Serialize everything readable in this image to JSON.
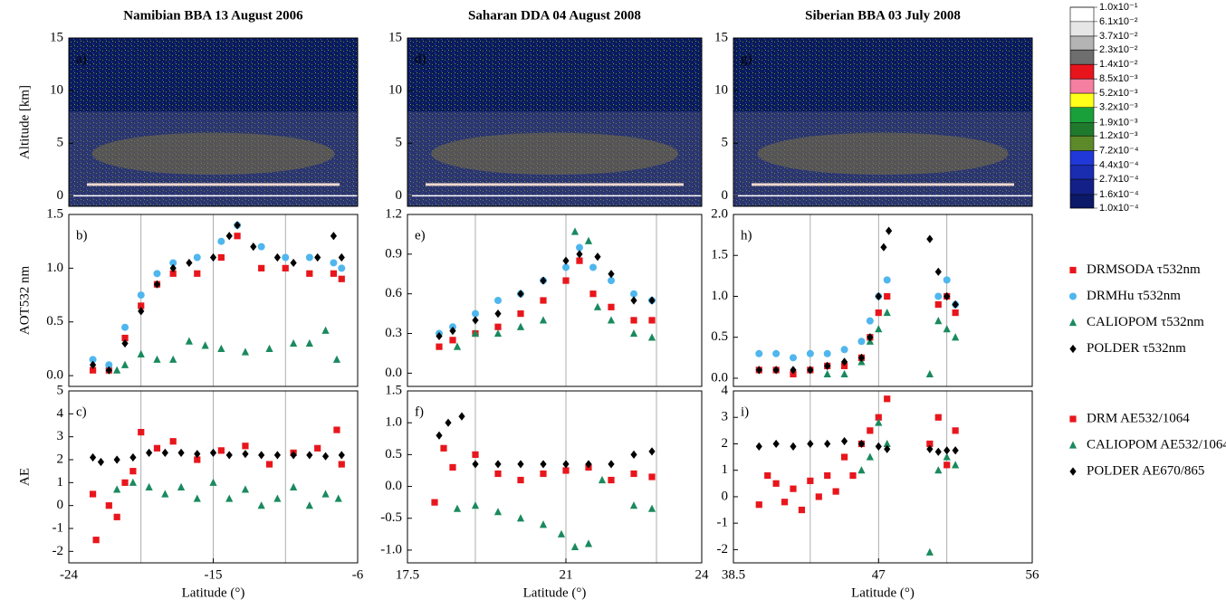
{
  "chart_data": [
    {
      "type": "lidar",
      "title": "Namibian BBA 13 August 2006",
      "label": "a)",
      "ylabel": "Altitude [km]",
      "xlim": [
        -24,
        -6
      ],
      "ylim": [
        -1,
        15
      ],
      "yticks": [
        0,
        5,
        10,
        15
      ]
    },
    {
      "type": "lidar",
      "title": "Saharan DDA 04 August 2008",
      "label": "d)",
      "xlim": [
        17.5,
        24
      ],
      "ylim": [
        -1,
        15
      ],
      "yticks": [
        0,
        5,
        10,
        15
      ]
    },
    {
      "type": "lidar",
      "title": "Siberian BBA 03 July 2008",
      "label": "g)",
      "xlim": [
        38.5,
        56
      ],
      "ylim": [
        -1,
        15
      ],
      "yticks": [
        0,
        5,
        10,
        15
      ]
    },
    {
      "type": "scatter",
      "label": "b)",
      "ylabel": "AOT532 nm",
      "xlim": [
        -24,
        -6
      ],
      "ylim": [
        -0.1,
        1.5
      ],
      "yticks": [
        {
          "value": 0,
          "label": "0.0"
        },
        0.5,
        {
          "value": 1,
          "label": "1.0"
        },
        1.5
      ],
      "vlines": [
        -19.5,
        -15,
        -10.5
      ],
      "series": [
        {
          "color": "#e8161c",
          "marker": "square",
          "x": [
            -22.5,
            -21.5,
            -20.5,
            -19.5,
            -18.5,
            -17.5,
            -16,
            -14.5,
            -13.5,
            -12,
            -10.5,
            -9,
            -7.5,
            -7
          ],
          "values": [
            0.05,
            0.05,
            0.35,
            0.65,
            0.85,
            0.95,
            0.95,
            1.1,
            1.3,
            1.0,
            1.0,
            0.95,
            0.95,
            0.9
          ]
        },
        {
          "color": "#4fb6ee",
          "marker": "circle",
          "x": [
            -22.5,
            -21.5,
            -20.5,
            -19.5,
            -18.5,
            -17.5,
            -16,
            -14.5,
            -13.5,
            -12,
            -10.5,
            -9,
            -7.5,
            -7
          ],
          "values": [
            0.15,
            0.1,
            0.45,
            0.75,
            0.95,
            1.05,
            1.1,
            1.25,
            1.4,
            1.2,
            1.1,
            1.1,
            1.05,
            1.0
          ]
        },
        {
          "color": "#1a8a5e",
          "marker": "triangle",
          "x": [
            -21,
            -20.5,
            -19.5,
            -18.5,
            -17.5,
            -16.5,
            -15.5,
            -14.5,
            -13,
            -11.5,
            -10,
            -9,
            -8,
            -7.3
          ],
          "values": [
            0.05,
            0.1,
            0.2,
            0.15,
            0.15,
            0.32,
            0.28,
            0.25,
            0.22,
            0.25,
            0.3,
            0.3,
            0.42,
            0.15
          ]
        },
        {
          "color": "#000000",
          "marker": "diamond",
          "x": [
            -22.5,
            -21.5,
            -20.5,
            -19.5,
            -18.5,
            -17.5,
            -16.5,
            -15,
            -14,
            -13.5,
            -12.5,
            -11,
            -10,
            -8.5,
            -7.5,
            -7
          ],
          "values": [
            0.1,
            0.05,
            0.3,
            0.6,
            0.85,
            1.0,
            1.05,
            1.1,
            1.3,
            1.4,
            1.2,
            1.1,
            1.05,
            1.1,
            1.3,
            1.1
          ]
        }
      ]
    },
    {
      "type": "scatter",
      "label": "e)",
      "xlim": [
        17.5,
        24
      ],
      "ylim": [
        -0.1,
        1.2
      ],
      "yticks": [
        {
          "value": 0,
          "label": "0.0"
        },
        0.3,
        0.6,
        0.9,
        1.2
      ],
      "vlines": [
        19,
        21,
        23
      ],
      "series": [
        {
          "color": "#e8161c",
          "marker": "square",
          "x": [
            18.2,
            18.5,
            19,
            19.5,
            20,
            20.5,
            21,
            21.3,
            21.6,
            22,
            22.5,
            22.9
          ],
          "values": [
            0.2,
            0.25,
            0.3,
            0.35,
            0.45,
            0.55,
            0.7,
            0.85,
            0.6,
            0.5,
            0.4,
            0.4
          ]
        },
        {
          "color": "#4fb6ee",
          "marker": "circle",
          "x": [
            18.2,
            18.5,
            19,
            19.5,
            20,
            20.5,
            21,
            21.3,
            21.6,
            22,
            22.5,
            22.9
          ],
          "values": [
            0.3,
            0.35,
            0.45,
            0.55,
            0.6,
            0.7,
            0.8,
            0.95,
            0.8,
            0.7,
            0.6,
            0.55
          ]
        },
        {
          "color": "#1a8a5e",
          "marker": "triangle",
          "x": [
            18.6,
            19,
            19.5,
            20,
            20.5,
            21.2,
            21.5,
            21.7,
            22,
            22.5,
            22.9
          ],
          "values": [
            0.2,
            0.3,
            0.3,
            0.35,
            0.4,
            1.07,
            1.0,
            0.5,
            0.4,
            0.3,
            0.27
          ]
        },
        {
          "color": "#000000",
          "marker": "diamond",
          "x": [
            18.2,
            18.5,
            19,
            19.5,
            20,
            20.5,
            21,
            21.3,
            21.7,
            22,
            22.5,
            22.9
          ],
          "values": [
            0.28,
            0.32,
            0.4,
            0.45,
            0.6,
            0.7,
            0.85,
            0.9,
            0.88,
            0.75,
            0.55,
            0.55
          ]
        }
      ]
    },
    {
      "type": "scatter",
      "label": "h)",
      "xlim": [
        38.5,
        56
      ],
      "ylim": [
        -0.1,
        2.0
      ],
      "yticks": [
        {
          "value": 0,
          "label": "0.0"
        },
        0.5,
        {
          "value": 1,
          "label": "1.0"
        },
        1.5,
        {
          "value": 2,
          "label": "2.0"
        }
      ],
      "vlines": [
        43,
        47,
        51
      ],
      "legend": "center right",
      "series": [
        {
          "name": "DRMSODA τ532nm",
          "color": "#e8161c",
          "marker": "square",
          "x": [
            40,
            41,
            42,
            43,
            44,
            45,
            46,
            46.5,
            47,
            47.5,
            50.5,
            51,
            51.5
          ],
          "values": [
            0.1,
            0.1,
            0.05,
            0.1,
            0.15,
            0.15,
            0.25,
            0.5,
            0.8,
            1.0,
            0.9,
            1.0,
            0.8
          ]
        },
        {
          "name": "DRMHu τ532nm",
          "color": "#4fb6ee",
          "marker": "circle",
          "x": [
            40,
            41,
            42,
            43,
            44,
            45,
            46,
            46.5,
            47,
            47.5,
            50.5,
            51,
            51.5
          ],
          "values": [
            0.3,
            0.3,
            0.25,
            0.3,
            0.3,
            0.35,
            0.45,
            0.7,
            1.0,
            1.2,
            1.0,
            1.2,
            0.9
          ]
        },
        {
          "name": "CALIOPOM τ532nm",
          "color": "#1a8a5e",
          "marker": "triangle",
          "x": [
            44,
            45,
            46,
            46.5,
            47,
            47.5,
            50,
            50.5,
            51,
            51.5
          ],
          "values": [
            0.05,
            0.05,
            0.2,
            0.45,
            0.6,
            0.8,
            0.05,
            0.7,
            0.6,
            0.5
          ]
        },
        {
          "name": "POLDER τ532nm",
          "color": "#000000",
          "marker": "diamond",
          "x": [
            40,
            41,
            42,
            43,
            44,
            45,
            46,
            46.5,
            47,
            47.3,
            47.6,
            50,
            50.5,
            51,
            51.5
          ],
          "values": [
            0.1,
            0.1,
            0.1,
            0.1,
            0.15,
            0.2,
            0.25,
            0.5,
            1.0,
            1.6,
            1.8,
            1.7,
            1.3,
            1.0,
            0.9
          ]
        }
      ]
    },
    {
      "type": "scatter",
      "label": "c)",
      "ylabel": "AE",
      "xlabel": "Latitude (°)",
      "xlim": [
        -24,
        -6
      ],
      "xticks": [
        -24,
        -15,
        -6
      ],
      "ylim": [
        -2.5,
        5
      ],
      "yticks": [
        -2,
        -1,
        0,
        1,
        2,
        3,
        4,
        5
      ],
      "vlines": [
        -19.5,
        -15,
        -10.5
      ],
      "series": [
        {
          "color": "#e8161c",
          "marker": "square",
          "x": [
            -22.5,
            -22.3,
            -21.5,
            -21,
            -20.5,
            -20,
            -19.5,
            -18.5,
            -17.5,
            -16,
            -14.5,
            -13,
            -11.5,
            -10,
            -8.5,
            -7.3,
            -7
          ],
          "values": [
            0.5,
            -1.5,
            0,
            -0.5,
            1,
            1.5,
            3.2,
            2.5,
            2.8,
            2.0,
            2.4,
            2.6,
            1.8,
            2.3,
            2.5,
            3.3,
            1.8
          ]
        },
        {
          "color": "#1a8a5e",
          "marker": "triangle",
          "x": [
            -21,
            -20,
            -19,
            -18,
            -17,
            -16,
            -15,
            -14,
            -13,
            -12,
            -11,
            -10,
            -9,
            -8,
            -7.2
          ],
          "values": [
            0.7,
            1.0,
            0.8,
            0.5,
            0.8,
            0.3,
            1.0,
            0.3,
            0.7,
            0,
            0.3,
            0.8,
            0,
            0.5,
            0.3
          ]
        },
        {
          "color": "#000000",
          "marker": "diamond",
          "x": [
            -22.5,
            -22,
            -21,
            -20,
            -19,
            -18,
            -17,
            -16,
            -15,
            -14,
            -13,
            -12,
            -11,
            -10,
            -9,
            -8,
            -7
          ],
          "values": [
            2.1,
            1.9,
            2.0,
            2.1,
            2.3,
            2.3,
            2.3,
            2.25,
            2.3,
            2.2,
            2.25,
            2.2,
            2.2,
            2.2,
            2.2,
            2.15,
            2.2
          ]
        }
      ]
    },
    {
      "type": "scatter",
      "label": "f)",
      "xlabel": "Latitude (°)",
      "xlim": [
        17.5,
        24
      ],
      "xticks": [
        17.5,
        21,
        24
      ],
      "ylim": [
        -1.2,
        1.5
      ],
      "yticks": [
        {
          "value": -1,
          "label": "-1.0"
        },
        -0.5,
        {
          "value": 0,
          "label": "0.0"
        },
        0.5,
        {
          "value": 1,
          "label": "1.0"
        },
        1.5
      ],
      "vlines": [
        19,
        21,
        23
      ],
      "series": [
        {
          "color": "#e8161c",
          "marker": "square",
          "x": [
            18.1,
            18.3,
            18.5,
            19,
            19.5,
            20,
            20.5,
            21,
            21.5,
            22,
            22.5,
            22.9
          ],
          "values": [
            -0.25,
            0.6,
            0.3,
            0.5,
            0.2,
            0.1,
            0.2,
            0.25,
            0.3,
            0.1,
            0.2,
            0.15
          ]
        },
        {
          "color": "#1a8a5e",
          "marker": "triangle",
          "x": [
            18.6,
            19,
            19.5,
            20,
            20.5,
            20.9,
            21.2,
            21.5,
            21.8,
            22.5,
            22.9
          ],
          "values": [
            -0.35,
            -0.3,
            -0.4,
            -0.5,
            -0.6,
            -0.75,
            -0.95,
            -0.9,
            0.1,
            -0.3,
            -0.35
          ]
        },
        {
          "color": "#000000",
          "marker": "diamond",
          "x": [
            18.2,
            18.4,
            18.7,
            19,
            19.5,
            20,
            20.5,
            21,
            21.5,
            22,
            22.5,
            22.9
          ],
          "values": [
            0.8,
            1.0,
            1.1,
            0.35,
            0.35,
            0.35,
            0.35,
            0.35,
            0.35,
            0.35,
            0.5,
            0.55
          ]
        }
      ]
    },
    {
      "type": "scatter",
      "label": "i)",
      "xlabel": "Latitude (°)",
      "xlim": [
        38.5,
        56
      ],
      "xticks": [
        38.5,
        47,
        56
      ],
      "ylim": [
        -2.5,
        4
      ],
      "yticks": [
        -2,
        -1,
        0,
        1,
        2,
        3,
        4
      ],
      "vlines": [
        43,
        47,
        51
      ],
      "legend": "upper right",
      "series": [
        {
          "name": "DRM AE532/1064",
          "color": "#e8161c",
          "marker": "square",
          "x": [
            40,
            40.5,
            41,
            41.5,
            42,
            42.5,
            43,
            43.5,
            44,
            44.5,
            45,
            45.5,
            46,
            46.5,
            47,
            47.5,
            50,
            50.5,
            51,
            51.5
          ],
          "values": [
            -0.3,
            0.8,
            0.5,
            -0.2,
            0.3,
            -0.5,
            0.6,
            0,
            0.8,
            0.2,
            1.5,
            0.8,
            2.0,
            2.5,
            3.0,
            3.7,
            2.0,
            3.0,
            1.2,
            2.5
          ]
        },
        {
          "name": "CALIOPOM AE532/1064",
          "color": "#1a8a5e",
          "marker": "triangle",
          "x": [
            46,
            46.5,
            47,
            47.5,
            50,
            50.5,
            51,
            51.5
          ],
          "values": [
            1.0,
            1.5,
            2.8,
            2.0,
            -2.1,
            1.0,
            1.5,
            1.2
          ]
        },
        {
          "name": "POLDER AE670/865",
          "color": "#000000",
          "marker": "diamond",
          "x": [
            40,
            41,
            42,
            43,
            44,
            45,
            46,
            47,
            47.5,
            50,
            50.5,
            51,
            51.5
          ],
          "values": [
            1.9,
            2.0,
            1.9,
            2.0,
            2.0,
            2.1,
            2.0,
            1.9,
            1.8,
            1.8,
            1.7,
            1.75,
            1.75
          ]
        }
      ]
    },
    {
      "type": "colorbar",
      "log": true,
      "ylim": [
        0.0001,
        0.1
      ],
      "yticks": [
        {
          "value": 0.1,
          "label": "1.0x10⁻¹"
        },
        {
          "value": 0.061,
          "label": "6.1x10⁻²"
        },
        {
          "value": 0.037,
          "label": "3.7x10⁻²"
        },
        {
          "value": 0.023,
          "label": "2.3x10⁻²"
        },
        {
          "value": 0.014,
          "label": "1.4x10⁻²"
        },
        {
          "value": 0.0085,
          "label": "8.5x10⁻³"
        },
        {
          "value": 0.0052,
          "label": "5.2x10⁻³"
        },
        {
          "value": 0.0032,
          "label": "3.2x10⁻³"
        },
        {
          "value": 0.0019,
          "label": "1.9x10⁻³"
        },
        {
          "value": 0.0012,
          "label": "1.2x10⁻³"
        },
        {
          "value": 0.00072,
          "label": "7.2x10⁻⁴"
        },
        {
          "value": 0.00044,
          "label": "4.4x10⁻⁴"
        },
        {
          "value": 0.00027,
          "label": "2.7x10⁻⁴"
        },
        {
          "value": 0.00016,
          "label": "1.6x10⁻⁴"
        },
        {
          "value": 0.0001,
          "label": "1.0x10⁻⁴"
        }
      ],
      "colors": [
        "#ffffff",
        "#e6e6e6",
        "#b4b4b4",
        "#6e6e6e",
        "#e8141c",
        "#f47fa0",
        "#ffff1a",
        "#1aa03a",
        "#207a2e",
        "#5c8a2a",
        "#2038d8",
        "#1a2cb0",
        "#122088",
        "#0c1868"
      ]
    }
  ]
}
